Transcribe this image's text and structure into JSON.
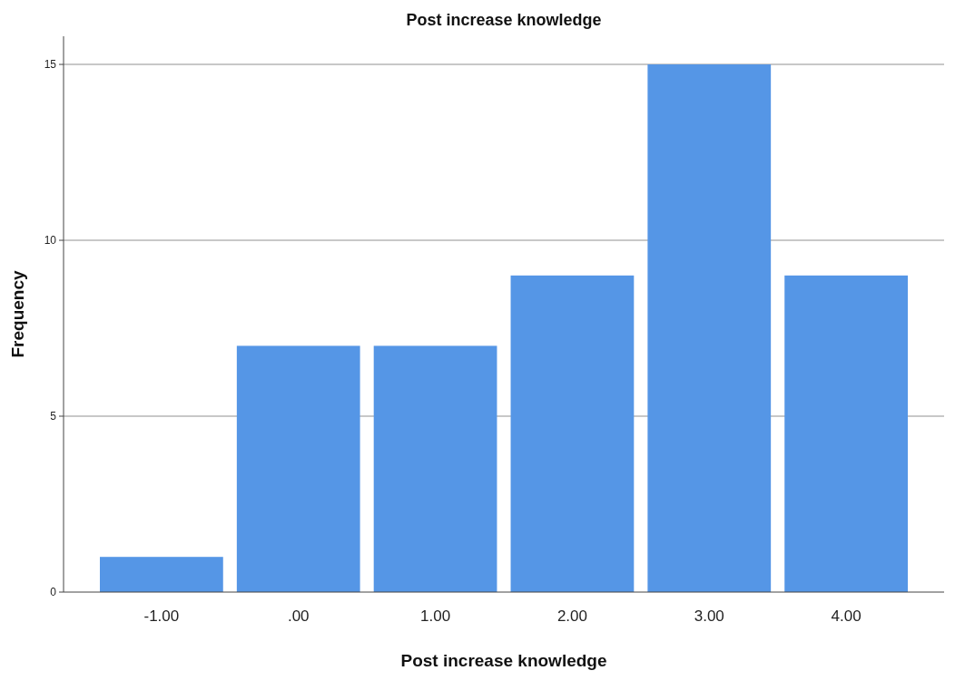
{
  "chart_data": {
    "type": "bar",
    "title": "Post increase knowledge",
    "xlabel": "Post increase knowledge",
    "ylabel": "Frequency",
    "categories": [
      "-1.00",
      ".00",
      "1.00",
      "2.00",
      "3.00",
      "4.00"
    ],
    "values": [
      1,
      7,
      7,
      9,
      15,
      9
    ],
    "color": "#5596e6",
    "ylim": [
      0,
      15.8
    ],
    "yticks": [
      0,
      5,
      10,
      15
    ],
    "grid": "y"
  }
}
